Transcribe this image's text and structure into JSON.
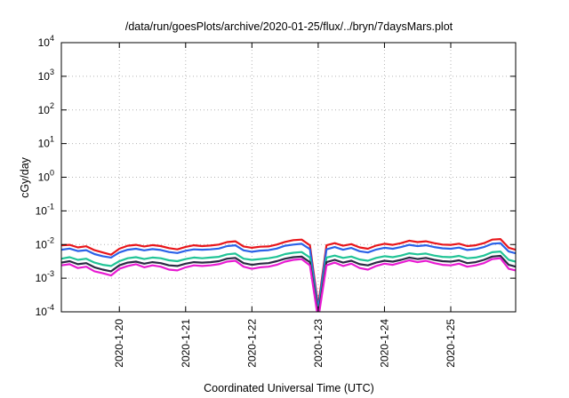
{
  "chart_data": {
    "type": "line",
    "title": "/data/run/goesPlots/archive/2020-01-25/flux/../bryn/7daysMars.plot",
    "xlabel": "Coordinated Universal Time (UTC)",
    "ylabel": "cGy/day",
    "yscale": "log",
    "ylim": [
      0.0001,
      10000
    ],
    "xlim": [
      "2020-01-19 03:00",
      "2020-01-25 23:30"
    ],
    "y_ticks": [
      {
        "value": 0.0001,
        "base": "10",
        "exp": "-4"
      },
      {
        "value": 0.001,
        "base": "10",
        "exp": "-3"
      },
      {
        "value": 0.01,
        "base": "10",
        "exp": "-2"
      },
      {
        "value": 0.1,
        "base": "10",
        "exp": "-1"
      },
      {
        "value": 1,
        "base": "10",
        "exp": "0"
      },
      {
        "value": 10,
        "base": "10",
        "exp": "1"
      },
      {
        "value": 100,
        "base": "10",
        "exp": "2"
      },
      {
        "value": 1000,
        "base": "10",
        "exp": "3"
      },
      {
        "value": 10000,
        "base": "10",
        "exp": "4"
      }
    ],
    "x_ticks": [
      "2020-1-20",
      "2020-1-21",
      "2020-1-22",
      "2020-1-23",
      "2020-1-24",
      "2020-1-25"
    ],
    "x_tick_dates": [
      "2020-01-20 00:00",
      "2020-01-21 00:00",
      "2020-01-22 00:00",
      "2020-01-23 00:00",
      "2020-01-24 00:00",
      "2020-01-25 00:00"
    ],
    "grid": true,
    "legend": "none",
    "x": [
      "2020-01-19 03:00",
      "2020-01-19 06:00",
      "2020-01-19 09:00",
      "2020-01-19 12:00",
      "2020-01-19 15:00",
      "2020-01-19 18:00",
      "2020-01-19 21:00",
      "2020-01-20 00:00",
      "2020-01-20 03:00",
      "2020-01-20 06:00",
      "2020-01-20 09:00",
      "2020-01-20 12:00",
      "2020-01-20 15:00",
      "2020-01-20 18:00",
      "2020-01-20 21:00",
      "2020-01-21 00:00",
      "2020-01-21 03:00",
      "2020-01-21 06:00",
      "2020-01-21 09:00",
      "2020-01-21 12:00",
      "2020-01-21 15:00",
      "2020-01-21 18:00",
      "2020-01-21 21:00",
      "2020-01-22 00:00",
      "2020-01-22 03:00",
      "2020-01-22 06:00",
      "2020-01-22 09:00",
      "2020-01-22 12:00",
      "2020-01-22 15:00",
      "2020-01-22 18:00",
      "2020-01-22 21:00",
      "2020-01-23 00:00",
      "2020-01-23 03:00",
      "2020-01-23 06:00",
      "2020-01-23 09:00",
      "2020-01-23 12:00",
      "2020-01-23 15:00",
      "2020-01-23 18:00",
      "2020-01-23 21:00",
      "2020-01-24 00:00",
      "2020-01-24 03:00",
      "2020-01-24 06:00",
      "2020-01-24 09:00",
      "2020-01-24 12:00",
      "2020-01-24 15:00",
      "2020-01-24 18:00",
      "2020-01-24 21:00",
      "2020-01-25 00:00",
      "2020-01-25 03:00",
      "2020-01-25 06:00",
      "2020-01-25 09:00",
      "2020-01-25 12:00",
      "2020-01-25 15:00",
      "2020-01-25 18:00",
      "2020-01-25 21:00",
      "2020-01-25 23:30"
    ],
    "series": [
      {
        "color": "#e8161b",
        "values": [
          0.0095,
          0.0098,
          0.0082,
          0.0089,
          0.0068,
          0.0058,
          0.005,
          0.0075,
          0.0092,
          0.0098,
          0.0088,
          0.0096,
          0.009,
          0.0078,
          0.0072,
          0.0085,
          0.0095,
          0.009,
          0.0093,
          0.01,
          0.0118,
          0.0125,
          0.0088,
          0.008,
          0.0086,
          0.0088,
          0.01,
          0.012,
          0.0135,
          0.014,
          0.0095,
          0.00015,
          0.0095,
          0.011,
          0.0092,
          0.0103,
          0.0082,
          0.0075,
          0.0093,
          0.0105,
          0.0098,
          0.011,
          0.013,
          0.0118,
          0.0125,
          0.011,
          0.01,
          0.0098,
          0.0106,
          0.009,
          0.0095,
          0.011,
          0.014,
          0.0145,
          0.008,
          0.007
        ]
      },
      {
        "color": "#2b62e8",
        "values": [
          0.007,
          0.0076,
          0.0064,
          0.0068,
          0.0052,
          0.0045,
          0.0041,
          0.0058,
          0.007,
          0.0075,
          0.0067,
          0.0073,
          0.0069,
          0.006,
          0.0056,
          0.0065,
          0.0072,
          0.007,
          0.0072,
          0.0076,
          0.009,
          0.0095,
          0.0067,
          0.0061,
          0.0066,
          0.0068,
          0.0076,
          0.0092,
          0.01,
          0.0105,
          0.0073,
          0.00012,
          0.0072,
          0.0084,
          0.007,
          0.0079,
          0.0063,
          0.0058,
          0.0071,
          0.008,
          0.0075,
          0.0084,
          0.0098,
          0.009,
          0.0095,
          0.0084,
          0.0077,
          0.0075,
          0.0081,
          0.0069,
          0.0073,
          0.0084,
          0.0105,
          0.011,
          0.0062,
          0.0055
        ]
      },
      {
        "color": "#21c496",
        "values": [
          0.0038,
          0.0042,
          0.0035,
          0.0038,
          0.0029,
          0.0025,
          0.0023,
          0.0032,
          0.0039,
          0.0042,
          0.0037,
          0.0041,
          0.0039,
          0.0034,
          0.0032,
          0.0037,
          0.0041,
          0.0039,
          0.0041,
          0.0043,
          0.0051,
          0.0054,
          0.0038,
          0.0035,
          0.0037,
          0.0039,
          0.0043,
          0.0052,
          0.0057,
          0.006,
          0.0041,
          9e-05,
          0.0041,
          0.0047,
          0.004,
          0.0044,
          0.0036,
          0.0033,
          0.004,
          0.0045,
          0.0042,
          0.0047,
          0.0055,
          0.0051,
          0.0054,
          0.0047,
          0.0043,
          0.0042,
          0.0046,
          0.0039,
          0.0041,
          0.0047,
          0.0059,
          0.0062,
          0.0035,
          0.0031
        ]
      },
      {
        "color": "#2b2b44",
        "values": [
          0.0029,
          0.0032,
          0.0026,
          0.0028,
          0.0021,
          0.0018,
          0.0016,
          0.0024,
          0.0029,
          0.0031,
          0.0027,
          0.003,
          0.0028,
          0.0024,
          0.0023,
          0.0027,
          0.003,
          0.0029,
          0.003,
          0.0032,
          0.0038,
          0.004,
          0.0028,
          0.0025,
          0.0027,
          0.0028,
          0.0032,
          0.0038,
          0.0042,
          0.0044,
          0.003,
          8e-05,
          0.003,
          0.0035,
          0.0029,
          0.0033,
          0.0026,
          0.0024,
          0.0029,
          0.0033,
          0.0031,
          0.0035,
          0.0041,
          0.0037,
          0.004,
          0.0035,
          0.0032,
          0.0031,
          0.0034,
          0.0028,
          0.003,
          0.0035,
          0.0044,
          0.0046,
          0.0025,
          0.0022
        ]
      },
      {
        "color": "#e81bd2",
        "values": [
          0.0024,
          0.0026,
          0.002,
          0.0022,
          0.0016,
          0.0014,
          0.0012,
          0.0019,
          0.0023,
          0.0026,
          0.0021,
          0.0024,
          0.0022,
          0.0018,
          0.0017,
          0.0021,
          0.0024,
          0.0023,
          0.0024,
          0.0026,
          0.0031,
          0.0033,
          0.0022,
          0.0019,
          0.0021,
          0.0022,
          0.0025,
          0.0031,
          0.0035,
          0.0037,
          0.0024,
          6e-05,
          0.0024,
          0.0029,
          0.0023,
          0.0027,
          0.002,
          0.0018,
          0.0023,
          0.0027,
          0.0025,
          0.0029,
          0.0034,
          0.003,
          0.0033,
          0.0028,
          0.0025,
          0.0024,
          0.0027,
          0.0022,
          0.0024,
          0.0028,
          0.0037,
          0.0039,
          0.0019,
          0.0017
        ]
      }
    ]
  }
}
